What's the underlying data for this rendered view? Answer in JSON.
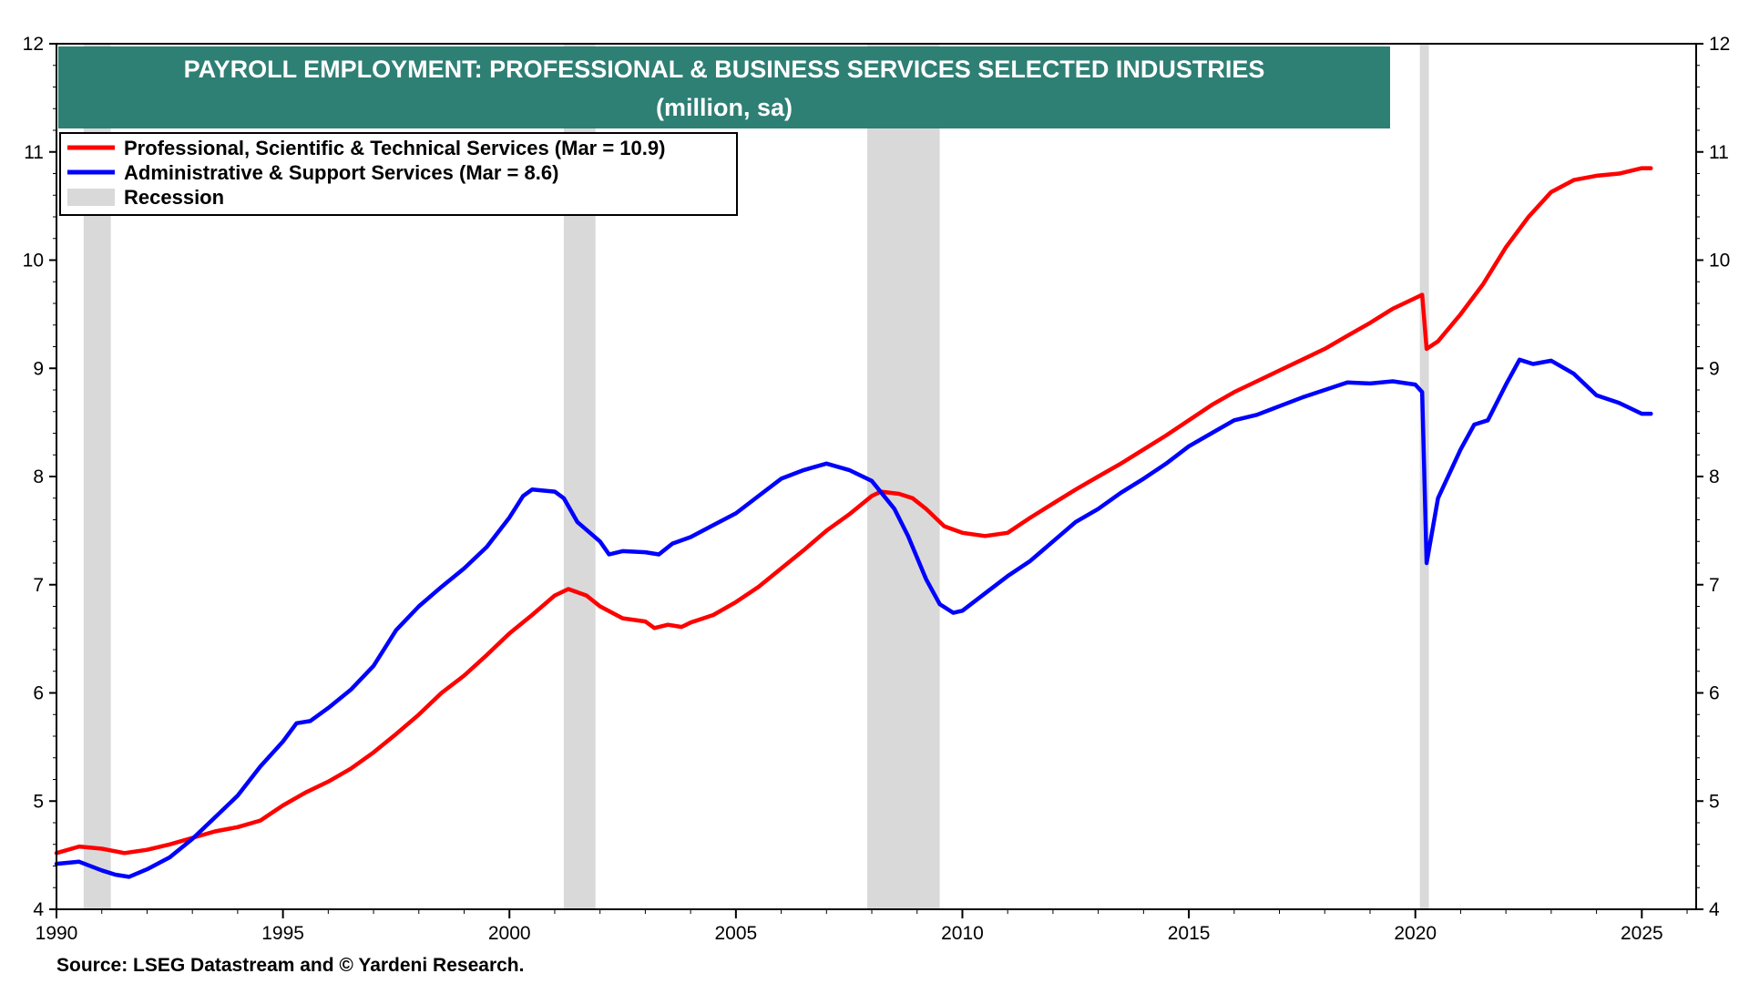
{
  "chart_data": {
    "type": "line",
    "title": "PAYROLL EMPLOYMENT: PROFESSIONAL & BUSINESS SERVICES SELECTED INDUSTRIES",
    "subtitle": "(million, sa)",
    "source": "Source: LSEG Datastream and © Yardeni Research.",
    "xlim": [
      1990,
      2026.2
    ],
    "ylim": [
      4,
      12
    ],
    "x_ticks": [
      "1990",
      "1995",
      "2000",
      "2005",
      "2010",
      "2015",
      "2020",
      "2025"
    ],
    "y_ticks": [
      "4",
      "5",
      "6",
      "7",
      "8",
      "9",
      "10",
      "11",
      "12"
    ],
    "legend_position": "top-left",
    "recessions": [
      [
        1990.6,
        1991.2
      ],
      [
        2001.2,
        2001.9
      ],
      [
        2007.9,
        2009.5
      ],
      [
        2020.1,
        2020.3
      ]
    ],
    "recession_label": "Recession",
    "recession_color": "#d9d9d9",
    "title_bg_color": "#2e7f74",
    "series": [
      {
        "name": "Professional, Scientific & Technical Services (Mar = 10.9)",
        "color": "#ff0000",
        "points": [
          [
            1990.0,
            4.52
          ],
          [
            1990.5,
            4.58
          ],
          [
            1991.0,
            4.56
          ],
          [
            1991.5,
            4.52
          ],
          [
            1992.0,
            4.55
          ],
          [
            1992.5,
            4.6
          ],
          [
            1993.0,
            4.66
          ],
          [
            1993.5,
            4.72
          ],
          [
            1994.0,
            4.76
          ],
          [
            1994.5,
            4.82
          ],
          [
            1995.0,
            4.96
          ],
          [
            1995.5,
            5.08
          ],
          [
            1996.0,
            5.18
          ],
          [
            1996.5,
            5.3
          ],
          [
            1997.0,
            5.45
          ],
          [
            1997.5,
            5.62
          ],
          [
            1998.0,
            5.8
          ],
          [
            1998.5,
            6.0
          ],
          [
            1999.0,
            6.16
          ],
          [
            1999.5,
            6.35
          ],
          [
            2000.0,
            6.55
          ],
          [
            2000.5,
            6.72
          ],
          [
            2001.0,
            6.9
          ],
          [
            2001.3,
            6.96
          ],
          [
            2001.7,
            6.9
          ],
          [
            2002.0,
            6.8
          ],
          [
            2002.5,
            6.69
          ],
          [
            2003.0,
            6.66
          ],
          [
            2003.2,
            6.6
          ],
          [
            2003.5,
            6.63
          ],
          [
            2003.8,
            6.61
          ],
          [
            2004.0,
            6.65
          ],
          [
            2004.5,
            6.72
          ],
          [
            2005.0,
            6.84
          ],
          [
            2005.5,
            6.98
          ],
          [
            2006.0,
            7.15
          ],
          [
            2006.5,
            7.32
          ],
          [
            2007.0,
            7.5
          ],
          [
            2007.5,
            7.65
          ],
          [
            2008.0,
            7.82
          ],
          [
            2008.2,
            7.86
          ],
          [
            2008.6,
            7.84
          ],
          [
            2008.9,
            7.8
          ],
          [
            2009.2,
            7.7
          ],
          [
            2009.6,
            7.54
          ],
          [
            2010.0,
            7.48
          ],
          [
            2010.5,
            7.45
          ],
          [
            2011.0,
            7.48
          ],
          [
            2011.5,
            7.62
          ],
          [
            2012.0,
            7.75
          ],
          [
            2012.5,
            7.88
          ],
          [
            2013.0,
            8.0
          ],
          [
            2013.5,
            8.12
          ],
          [
            2014.0,
            8.25
          ],
          [
            2014.5,
            8.38
          ],
          [
            2015.0,
            8.52
          ],
          [
            2015.5,
            8.66
          ],
          [
            2016.0,
            8.78
          ],
          [
            2016.5,
            8.88
          ],
          [
            2017.0,
            8.98
          ],
          [
            2017.5,
            9.08
          ],
          [
            2018.0,
            9.18
          ],
          [
            2018.5,
            9.3
          ],
          [
            2019.0,
            9.42
          ],
          [
            2019.5,
            9.55
          ],
          [
            2020.0,
            9.65
          ],
          [
            2020.15,
            9.68
          ],
          [
            2020.25,
            9.18
          ],
          [
            2020.5,
            9.25
          ],
          [
            2021.0,
            9.5
          ],
          [
            2021.5,
            9.78
          ],
          [
            2022.0,
            10.12
          ],
          [
            2022.5,
            10.4
          ],
          [
            2023.0,
            10.63
          ],
          [
            2023.5,
            10.74
          ],
          [
            2024.0,
            10.78
          ],
          [
            2024.5,
            10.8
          ],
          [
            2025.0,
            10.85
          ],
          [
            2025.2,
            10.85
          ]
        ]
      },
      {
        "name": "Administrative & Support Services (Mar = 8.6)",
        "color": "#0000ff",
        "points": [
          [
            1990.0,
            4.42
          ],
          [
            1990.5,
            4.44
          ],
          [
            1991.0,
            4.36
          ],
          [
            1991.3,
            4.32
          ],
          [
            1991.6,
            4.3
          ],
          [
            1992.0,
            4.37
          ],
          [
            1992.5,
            4.48
          ],
          [
            1993.0,
            4.65
          ],
          [
            1993.5,
            4.85
          ],
          [
            1994.0,
            5.05
          ],
          [
            1994.5,
            5.32
          ],
          [
            1995.0,
            5.55
          ],
          [
            1995.3,
            5.72
          ],
          [
            1995.6,
            5.74
          ],
          [
            1996.0,
            5.86
          ],
          [
            1996.5,
            6.03
          ],
          [
            1997.0,
            6.25
          ],
          [
            1997.5,
            6.58
          ],
          [
            1998.0,
            6.8
          ],
          [
            1998.5,
            6.98
          ],
          [
            1999.0,
            7.15
          ],
          [
            1999.5,
            7.35
          ],
          [
            2000.0,
            7.62
          ],
          [
            2000.3,
            7.82
          ],
          [
            2000.5,
            7.88
          ],
          [
            2001.0,
            7.86
          ],
          [
            2001.2,
            7.8
          ],
          [
            2001.5,
            7.58
          ],
          [
            2002.0,
            7.4
          ],
          [
            2002.2,
            7.28
          ],
          [
            2002.5,
            7.31
          ],
          [
            2003.0,
            7.3
          ],
          [
            2003.3,
            7.28
          ],
          [
            2003.6,
            7.38
          ],
          [
            2004.0,
            7.44
          ],
          [
            2004.5,
            7.55
          ],
          [
            2005.0,
            7.66
          ],
          [
            2005.5,
            7.82
          ],
          [
            2006.0,
            7.98
          ],
          [
            2006.5,
            8.06
          ],
          [
            2007.0,
            8.12
          ],
          [
            2007.5,
            8.06
          ],
          [
            2008.0,
            7.96
          ],
          [
            2008.5,
            7.7
          ],
          [
            2008.8,
            7.45
          ],
          [
            2009.2,
            7.05
          ],
          [
            2009.5,
            6.82
          ],
          [
            2009.8,
            6.74
          ],
          [
            2010.0,
            6.76
          ],
          [
            2010.5,
            6.92
          ],
          [
            2011.0,
            7.08
          ],
          [
            2011.5,
            7.22
          ],
          [
            2012.0,
            7.4
          ],
          [
            2012.5,
            7.58
          ],
          [
            2013.0,
            7.7
          ],
          [
            2013.5,
            7.85
          ],
          [
            2014.0,
            7.98
          ],
          [
            2014.5,
            8.12
          ],
          [
            2015.0,
            8.28
          ],
          [
            2015.5,
            8.4
          ],
          [
            2016.0,
            8.52
          ],
          [
            2016.5,
            8.57
          ],
          [
            2017.0,
            8.65
          ],
          [
            2017.5,
            8.73
          ],
          [
            2018.0,
            8.8
          ],
          [
            2018.5,
            8.87
          ],
          [
            2019.0,
            8.86
          ],
          [
            2019.5,
            8.88
          ],
          [
            2020.0,
            8.85
          ],
          [
            2020.15,
            8.78
          ],
          [
            2020.25,
            7.2
          ],
          [
            2020.5,
            7.8
          ],
          [
            2021.0,
            8.25
          ],
          [
            2021.3,
            8.48
          ],
          [
            2021.6,
            8.52
          ],
          [
            2022.0,
            8.85
          ],
          [
            2022.3,
            9.08
          ],
          [
            2022.6,
            9.04
          ],
          [
            2023.0,
            9.07
          ],
          [
            2023.5,
            8.95
          ],
          [
            2024.0,
            8.75
          ],
          [
            2024.5,
            8.68
          ],
          [
            2025.0,
            8.58
          ],
          [
            2025.2,
            8.58
          ]
        ]
      }
    ]
  }
}
